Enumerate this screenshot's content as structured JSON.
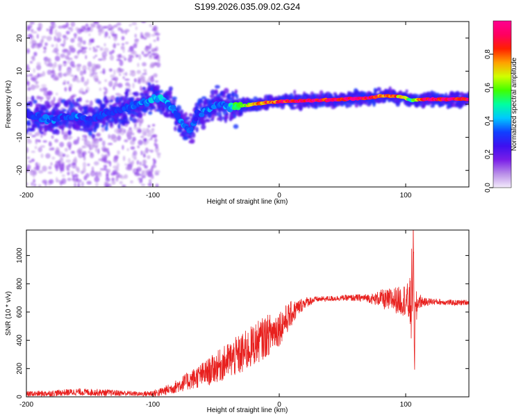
{
  "title": "S199.2026.035.09.02.G24",
  "chart_data": [
    {
      "type": "heatmap",
      "title": "S199.2026.035.09.02.G24",
      "xlabel": "Height of straight line (km)",
      "ylabel": "Frequency (Hz)",
      "xlim": [
        -200,
        150
      ],
      "ylim": [
        -25,
        25
      ],
      "x_ticks": [
        -200,
        -100,
        0,
        100
      ],
      "x_tick_labels": [
        "-200",
        "-100",
        "0",
        "100"
      ],
      "y_ticks": [
        -20,
        -10,
        0,
        10,
        20
      ],
      "y_tick_labels": [
        "-20",
        "-10",
        "0",
        "10",
        "20"
      ],
      "ridge": {
        "x": [
          -200,
          -190,
          -180,
          -170,
          -160,
          -150,
          -140,
          -130,
          -120,
          -110,
          -100,
          -95,
          -90,
          -85,
          -80,
          -75,
          -70,
          -65,
          -60,
          -55,
          -50,
          -45,
          -40,
          -35,
          -30,
          -20,
          -10,
          0,
          10,
          20,
          30,
          40,
          50,
          60,
          70,
          80,
          90,
          100,
          105,
          110,
          120,
          130,
          140,
          150
        ],
        "y": [
          -3,
          -4,
          -4.5,
          -4,
          -3.5,
          -5,
          -3,
          -2,
          -1,
          0,
          1.5,
          2,
          1,
          -1,
          -4,
          -7,
          -8,
          -3,
          -2,
          -1.5,
          -0.5,
          0,
          -1,
          -1,
          -0.5,
          0,
          0.5,
          0.8,
          1,
          1,
          1.2,
          1.3,
          1.5,
          1.7,
          1.8,
          2.5,
          2.5,
          2,
          1,
          1.5,
          1.5,
          1.5,
          1.5,
          1.5
        ],
        "amplitude": [
          0.3,
          0.35,
          0.35,
          0.3,
          0.35,
          0.3,
          0.3,
          0.3,
          0.3,
          0.35,
          0.4,
          0.45,
          0.4,
          0.35,
          0.35,
          0.35,
          0.35,
          0.3,
          0.35,
          0.35,
          0.35,
          0.35,
          0.4,
          0.5,
          0.6,
          0.7,
          0.8,
          0.85,
          0.95,
          0.98,
          0.95,
          0.9,
          0.9,
          0.95,
          0.95,
          0.85,
          0.8,
          0.7,
          0.5,
          0.8,
          0.95,
          0.95,
          0.95,
          0.95
        ]
      },
      "colorbar": {
        "label": "Normalized spectral amplitude",
        "range": [
          0,
          1
        ],
        "ticks": [
          0.0,
          0.2,
          0.4,
          0.6,
          0.8
        ],
        "tick_labels": [
          "0.0",
          "0.2",
          "0.4",
          "0.6",
          "0.8"
        ],
        "colors": [
          "#f4ecfb",
          "#b98ee8",
          "#7a1ee8",
          "#3d10f0",
          "#1040ff",
          "#00c8ff",
          "#00ffa0",
          "#40ff00",
          "#d0ff00",
          "#ffa000",
          "#ff2000",
          "#ff0060",
          "#ff0090"
        ]
      }
    },
    {
      "type": "line",
      "title": "",
      "xlabel": "Height of straight line (km)",
      "ylabel": "SNR (10 * v/v)",
      "xlim": [
        -200,
        150
      ],
      "ylim": [
        0,
        1180
      ],
      "x_ticks": [
        -200,
        -100,
        0,
        100
      ],
      "x_tick_labels": [
        "-200",
        "-100",
        "0",
        "100"
      ],
      "y_ticks": [
        0,
        200,
        400,
        600,
        800,
        1000
      ],
      "y_tick_labels": [
        "0",
        "200",
        "400",
        "600",
        "800",
        "1000"
      ],
      "series": [
        {
          "name": "SNR",
          "color": "#e8201e",
          "x": [
            -200,
            -180,
            -160,
            -140,
            -120,
            -110,
            -100,
            -95,
            -90,
            -85,
            -80,
            -75,
            -70,
            -65,
            -60,
            -55,
            -50,
            -45,
            -40,
            -35,
            -30,
            -25,
            -20,
            -15,
            -10,
            -5,
            0,
            5,
            10,
            15,
            20,
            25,
            30,
            40,
            50,
            60,
            70,
            75,
            80,
            85,
            90,
            95,
            100,
            103,
            105,
            106,
            107,
            108,
            110,
            115,
            120,
            130,
            140,
            150
          ],
          "y": [
            20,
            25,
            35,
            30,
            25,
            20,
            25,
            30,
            45,
            60,
            80,
            100,
            120,
            140,
            160,
            180,
            210,
            230,
            260,
            280,
            300,
            330,
            370,
            400,
            430,
            460,
            490,
            540,
            590,
            630,
            665,
            680,
            690,
            695,
            700,
            700,
            700,
            690,
            700,
            680,
            690,
            680,
            690,
            650,
            700,
            1060,
            400,
            600,
            680,
            670,
            675,
            670,
            665,
            670
          ],
          "noise": [
            20,
            22,
            25,
            25,
            20,
            15,
            25,
            30,
            35,
            40,
            50,
            60,
            70,
            80,
            90,
            100,
            110,
            120,
            130,
            140,
            150,
            150,
            150,
            150,
            150,
            140,
            130,
            110,
            90,
            60,
            40,
            30,
            20,
            20,
            20,
            25,
            30,
            40,
            60,
            80,
            90,
            100,
            120,
            150,
            400,
            200,
            300,
            150,
            60,
            30,
            25,
            20,
            20,
            20
          ]
        }
      ]
    }
  ]
}
